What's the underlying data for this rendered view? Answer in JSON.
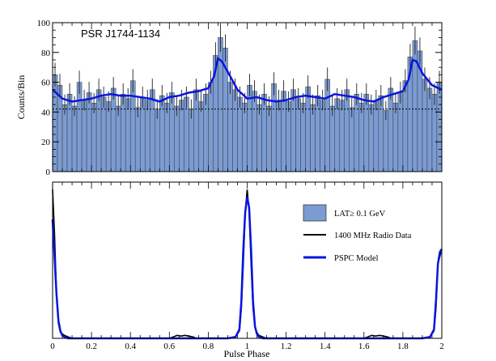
{
  "chart_data": [
    {
      "type": "bar",
      "title": "PSR J1744-1134",
      "ylabel": "Counts/Bin",
      "xlabel": "",
      "xlim": [
        0,
        2
      ],
      "ylim": [
        0,
        100
      ],
      "yticks": [
        0,
        20,
        40,
        60,
        80,
        100
      ],
      "background_level": 42,
      "colors": {
        "histogram": "#7b9bd2",
        "model": "#0a14e0",
        "background_line": "#000000"
      },
      "series": [
        {
          "name": "LAT≥ 0.1 GeV",
          "x": [
            0.0125,
            0.0375,
            0.0625,
            0.0875,
            0.1125,
            0.1375,
            0.1625,
            0.1875,
            0.2125,
            0.2375,
            0.2625,
            0.2875,
            0.3125,
            0.3375,
            0.3625,
            0.3875,
            0.4125,
            0.4375,
            0.4625,
            0.4875,
            0.5125,
            0.5375,
            0.5625,
            0.5875,
            0.6125,
            0.6375,
            0.6625,
            0.6875,
            0.7125,
            0.7375,
            0.7625,
            0.7875,
            0.8125,
            0.8375,
            0.8625,
            0.8875,
            0.9125,
            0.9375,
            0.9625,
            0.9875,
            1.0125,
            1.0375,
            1.0625,
            1.0875,
            1.1125,
            1.1375,
            1.1625,
            1.1875,
            1.2125,
            1.2375,
            1.2625,
            1.2875,
            1.3125,
            1.3375,
            1.3625,
            1.3875,
            1.4125,
            1.4375,
            1.4625,
            1.4875,
            1.5125,
            1.5375,
            1.5625,
            1.5875,
            1.6125,
            1.6375,
            1.6625,
            1.6875,
            1.7125,
            1.7375,
            1.7625,
            1.7875,
            1.8125,
            1.8375,
            1.8625,
            1.8875,
            1.9125,
            1.9375,
            1.9625,
            1.9875
          ],
          "values": [
            65,
            58,
            45,
            52,
            44,
            60,
            48,
            53,
            46,
            55,
            50,
            47,
            56,
            44,
            52,
            49,
            61,
            43,
            50,
            48,
            55,
            42,
            51,
            46,
            53,
            44,
            48,
            50,
            42,
            55,
            47,
            52,
            60,
            78,
            90,
            83,
            60,
            55,
            50,
            46,
            58,
            54,
            45,
            52,
            44,
            59,
            48,
            54,
            47,
            55,
            49,
            46,
            57,
            45,
            51,
            48,
            62,
            44,
            49,
            48,
            55,
            43,
            52,
            46,
            52,
            45,
            48,
            51,
            41,
            56,
            46,
            53,
            61,
            77,
            88,
            81,
            62,
            56,
            52,
            60
          ]
        },
        {
          "name": "PSPC Model",
          "x": [
            0,
            0.05,
            0.1,
            0.15,
            0.2,
            0.25,
            0.3,
            0.35,
            0.4,
            0.45,
            0.5,
            0.55,
            0.6,
            0.65,
            0.7,
            0.75,
            0.8,
            0.83,
            0.85,
            0.87,
            0.9,
            0.95,
            1.0,
            1.05,
            1.1,
            1.15,
            1.2,
            1.25,
            1.3,
            1.35,
            1.4,
            1.45,
            1.5,
            1.55,
            1.6,
            1.65,
            1.7,
            1.75,
            1.8,
            1.83,
            1.85,
            1.87,
            1.9,
            1.95,
            2.0
          ],
          "values": [
            55,
            49,
            47,
            48,
            49,
            51,
            52,
            51,
            51,
            50,
            49,
            47,
            50,
            51,
            53,
            54,
            56,
            64,
            76,
            74,
            67,
            55,
            49,
            50,
            48,
            47,
            48,
            50,
            51,
            50,
            49,
            52,
            51,
            50,
            48,
            47,
            50,
            52,
            54,
            62,
            75,
            74,
            66,
            58,
            55
          ]
        }
      ]
    },
    {
      "type": "line",
      "xlabel": "Pulse Phase",
      "ylabel": "",
      "xlim": [
        0,
        2
      ],
      "ylim": [
        0,
        1.05
      ],
      "xticks": [
        "0",
        "0.2",
        "0.4",
        "0.6",
        "0.8",
        "1",
        "1.2",
        "1.4",
        "1.6",
        "1.8",
        "2"
      ],
      "colors": {
        "radio": "#000000",
        "model": "#0a14e0"
      },
      "legend": {
        "placement": "right",
        "entries": [
          "LAT≥ 0.1 GeV",
          "1400 MHz Radio Data",
          "PSPC Model"
        ]
      },
      "series": [
        {
          "name": "1400 MHz Radio Data",
          "x": [
            0,
            0.01,
            0.02,
            0.03,
            0.04,
            0.05,
            0.06,
            0.08,
            0.1,
            0.2,
            0.6,
            0.62,
            0.64,
            0.66,
            0.68,
            0.7,
            0.72,
            0.74,
            0.8,
            0.9,
            0.94,
            0.96,
            0.97,
            0.98,
            0.99,
            1.0,
            1.01,
            1.02,
            1.03,
            1.04,
            1.05,
            1.06,
            1.08,
            1.1,
            1.2,
            1.6,
            1.62,
            1.64,
            1.66,
            1.68,
            1.7,
            1.72,
            1.74,
            1.8,
            1.9,
            1.94,
            1.96,
            1.97,
            1.98,
            1.99,
            2.0
          ],
          "values": [
            1.0,
            0.7,
            0.3,
            0.1,
            0.04,
            0.03,
            0.02,
            0.01,
            0.0,
            0.0,
            0.0,
            0.01,
            0.02,
            0.015,
            0.02,
            0.015,
            0.01,
            0.0,
            0.0,
            0.0,
            0.01,
            0.05,
            0.2,
            0.5,
            0.85,
            1.0,
            0.85,
            0.5,
            0.2,
            0.08,
            0.04,
            0.02,
            0.01,
            0.0,
            0.0,
            0.0,
            0.01,
            0.02,
            0.015,
            0.02,
            0.015,
            0.01,
            0.0,
            0.0,
            0.0,
            0.01,
            0.05,
            0.2,
            0.5,
            0.55,
            0.6
          ]
        },
        {
          "name": "PSPC Model",
          "x": [
            0,
            0.01,
            0.02,
            0.03,
            0.04,
            0.05,
            0.06,
            0.08,
            0.1,
            0.9,
            0.94,
            0.96,
            0.97,
            0.98,
            0.99,
            1.0,
            1.01,
            1.02,
            1.03,
            1.04,
            1.05,
            1.06,
            1.08,
            1.1,
            1.9,
            1.94,
            1.96,
            1.97,
            1.98,
            1.99,
            2.0
          ],
          "values": [
            0.8,
            0.55,
            0.3,
            0.12,
            0.05,
            0.02,
            0.01,
            0.0,
            0.0,
            0.0,
            0.01,
            0.06,
            0.25,
            0.6,
            0.85,
            0.95,
            0.88,
            0.6,
            0.25,
            0.08,
            0.03,
            0.01,
            0.0,
            0.0,
            0.0,
            0.01,
            0.06,
            0.25,
            0.5,
            0.58,
            0.6
          ]
        }
      ]
    }
  ]
}
